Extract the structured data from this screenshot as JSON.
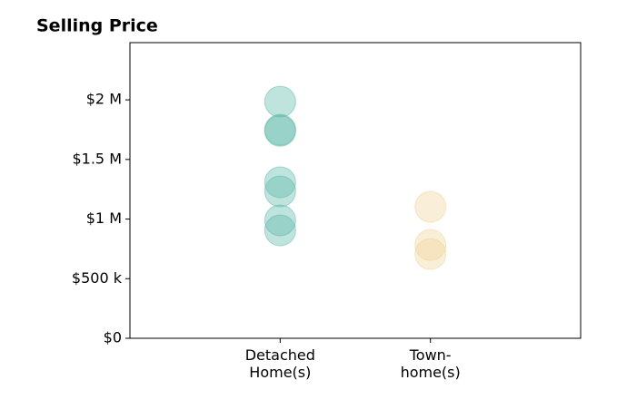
{
  "chart_data": {
    "type": "strip",
    "title": "Selling Price",
    "categories": [
      "Detached\nHome(s)",
      "Town-\nhome(s)"
    ],
    "values": [
      [
        1985000,
        1749000,
        1740000,
        1308000,
        1232000,
        989000,
        905000
      ],
      [
        1103000,
        783000,
        707000
      ]
    ],
    "colors": [
      "#5fb8aa",
      "#f0d49a"
    ],
    "ylim": [
      0,
      2480000
    ],
    "yticks": [
      {
        "value": 0,
        "label": "$0"
      },
      {
        "value": 500000,
        "label": "$500 k"
      },
      {
        "value": 1000000,
        "label": "$1 M"
      },
      {
        "value": 1500000,
        "label": "$1.5 M"
      },
      {
        "value": 2000000,
        "label": "$2 M"
      }
    ]
  }
}
